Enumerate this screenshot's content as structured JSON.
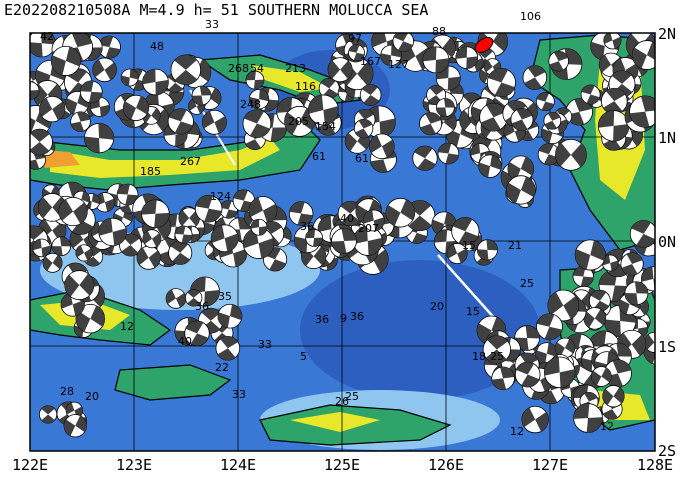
{
  "header": {
    "event_title": "E202208210508A M=4.9 h= 51 SOUTHERN MOLUCCA SEA"
  },
  "map": {
    "lon_labels": [
      "122E",
      "123E",
      "124E",
      "125E",
      "126E",
      "127E",
      "128E"
    ],
    "lat_labels": [
      "2N",
      "1N",
      "0N",
      "1S",
      "2S"
    ],
    "ocean_color": "#3a78d6",
    "deep_ocean_color": "#2c5fc0",
    "shallow_color": "#8fc6f0",
    "land_low_color": "#2ea36a",
    "land_mid_color": "#e8e82a",
    "land_high_color": "#f0a030",
    "event_marker_color": "#ff0000"
  },
  "depth_labels": [
    "42",
    "48",
    "33",
    "268",
    "54",
    "213",
    "116",
    "248",
    "205",
    "154",
    "97",
    "167",
    "127",
    "88",
    "106",
    "61",
    "267",
    "185",
    "124",
    "36",
    "40",
    "207",
    "15",
    "21",
    "25",
    "20",
    "15",
    "18",
    "25",
    "36",
    "26",
    "25",
    "12",
    "12",
    "22",
    "33",
    "40",
    "36",
    "35",
    "36",
    "5",
    "33",
    "28",
    "20",
    "61",
    "12",
    "9"
  ]
}
